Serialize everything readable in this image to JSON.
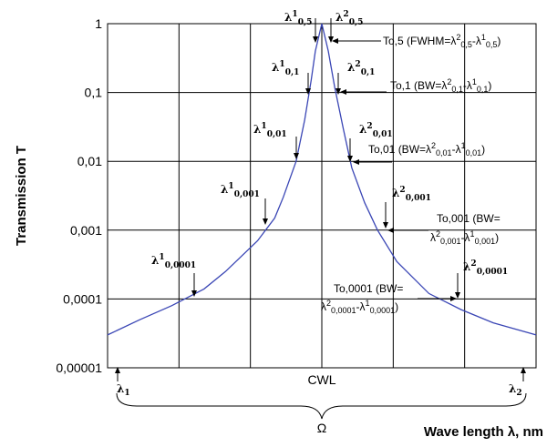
{
  "chart_data": {
    "type": "line",
    "ylabel": "Transmission T",
    "xlabel": "Wave length λ, nm",
    "yscale": "log",
    "ylim": [
      1e-05,
      1
    ],
    "y_ticks": [
      "1",
      "0,1",
      "0,01",
      "0,001",
      "0,0001",
      "0,00001"
    ],
    "x_center_label": "CWL",
    "x_left_label": "λ1",
    "x_right_label": "λ2",
    "range_label": "Ω",
    "grid": true,
    "series": [
      {
        "values": [
          [
            -1.0,
            3e-05
          ],
          [
            -0.85,
            5e-05
          ],
          [
            -0.7,
            8e-05
          ],
          [
            -0.55,
            0.00014
          ],
          [
            -0.45,
            0.00025
          ],
          [
            -0.3,
            0.0007
          ],
          [
            -0.22,
            0.0015
          ],
          [
            -0.18,
            0.003
          ],
          [
            -0.12,
            0.01
          ],
          [
            -0.08,
            0.04
          ],
          [
            -0.05,
            0.15
          ],
          [
            -0.03,
            0.4
          ],
          [
            0.0,
            1.0
          ],
          [
            0.03,
            0.4
          ],
          [
            0.06,
            0.12
          ],
          [
            0.1,
            0.03
          ],
          [
            0.14,
            0.008
          ],
          [
            0.2,
            0.0025
          ],
          [
            0.26,
            0.001
          ],
          [
            0.35,
            0.00035
          ],
          [
            0.5,
            0.00012
          ],
          [
            0.65,
            7e-05
          ],
          [
            0.8,
            4.5e-05
          ],
          [
            1.0,
            3e-05
          ]
        ]
      }
    ],
    "annotations": [
      {
        "label": "λ¹0,5",
        "x": -0.02,
        "y": 1
      },
      {
        "label": "λ²0,5",
        "x": 0.02,
        "y": 1
      },
      {
        "label": "λ¹0,1",
        "x": -0.05,
        "y": 0.1
      },
      {
        "label": "λ²0,1",
        "x": 0.05,
        "y": 0.1
      },
      {
        "label": "λ¹0,01",
        "x": -0.1,
        "y": 0.01
      },
      {
        "label": "λ²0,01",
        "x": 0.09,
        "y": 0.01
      },
      {
        "label": "λ¹0,001",
        "x": -0.22,
        "y": 0.001
      },
      {
        "label": "λ²0,001",
        "x": 0.23,
        "y": 0.001
      },
      {
        "label": "λ¹0,0001",
        "x": -0.56,
        "y": 0.0001
      },
      {
        "label": "λ²0,0001",
        "x": 0.56,
        "y": 0.0001
      }
    ],
    "callouts": {
      "t05": "To,5 (FWHM=λ²0,5-λ¹0,5)",
      "t01": "To,1 (BW=λ²0,1-λ¹0,1)",
      "t001": "To,01 (BW=λ²0,01-λ¹0,01)",
      "t0001_a": "To,001 (BW=",
      "t0001_b": "λ²0,001-λ¹0,001)",
      "t00001_a": "To,0001 (BW=",
      "t00001_b": "λ²0,0001-λ¹0,0001)"
    }
  }
}
